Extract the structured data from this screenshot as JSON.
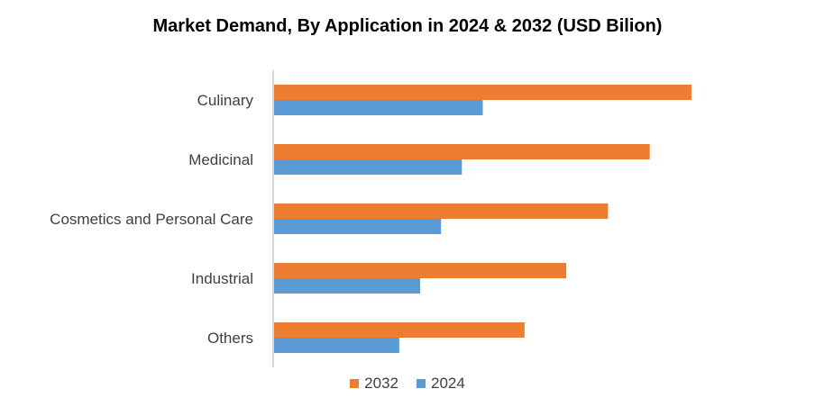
{
  "chart_data": {
    "type": "bar",
    "orientation": "horizontal",
    "title": "Market Demand, By Application in  2024 & 2032 (USD Bilion)",
    "xlabel": "",
    "ylabel": "",
    "categories": [
      "Culinary",
      "Medicinal",
      "Cosmetics and Personal Care",
      "Industrial",
      "Others"
    ],
    "series": [
      {
        "name": "2032",
        "color": "#ED7D31",
        "values": [
          100,
          90,
          80,
          70,
          60
        ]
      },
      {
        "name": "2024",
        "color": "#5B9BD5",
        "values": [
          50,
          45,
          40,
          35,
          30
        ]
      }
    ],
    "xlim": [
      0,
      100
    ],
    "grid": false,
    "legend_position": "bottom"
  }
}
